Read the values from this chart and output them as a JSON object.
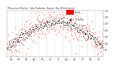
{
  "title": "Milwaukee Weather  Solar Radiation",
  "subtitle": "Avg per Day W/m2/minute",
  "bg_color": "#ffffff",
  "plot_bg": "#ffffff",
  "grid_color": "#bbbbbb",
  "dot_color_actual": "#ff0000",
  "dot_color_avg": "#000000",
  "legend_actual": "Actual",
  "legend_avg": "Daily Avg",
  "legend_box_color": "#ff0000",
  "ylim": [
    0,
    350
  ],
  "yticks": [
    50,
    100,
    150,
    200,
    250,
    300,
    350
  ],
  "ytick_labels": [
    "50",
    "100",
    "150",
    "200",
    "250",
    "300",
    "350"
  ],
  "months": [
    "Jan",
    "Feb",
    "Mar",
    "Apr",
    "May",
    "Jun",
    "Jul",
    "Aug",
    "Sep",
    "Oct",
    "Nov",
    "Dec"
  ],
  "num_points": 365,
  "seed": 42
}
